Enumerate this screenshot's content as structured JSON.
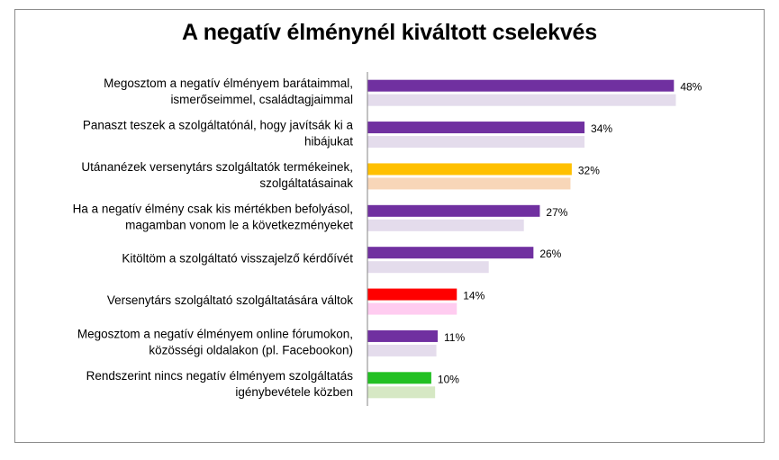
{
  "chart_data": {
    "type": "bar",
    "orientation": "horizontal",
    "title": "A negatív élménynél kiváltott cselekvés",
    "xlabel": "",
    "ylabel": "",
    "xlim": [
      0,
      50
    ],
    "grid": false,
    "legend": "none",
    "categories": [
      [
        "Megosztom a negatív élményem barátaimmal,",
        "ismerőseimmel, családtagjaimmal"
      ],
      [
        "Panaszt teszek a szolgáltatónál, hogy javítsák ki a",
        "hibájukat"
      ],
      [
        "Utánanézek versenytárs szolgáltatók termékeinek,",
        "szolgáltatásainak"
      ],
      [
        "Ha a negatív élmény csak kis mértékben befolyásol,",
        "magamban vonom le a következményeket"
      ],
      [
        "Kitöltöm a szolgáltató visszajelző kérdőívét"
      ],
      [
        "Versenytárs szolgáltató szolgáltatására váltok"
      ],
      [
        "Megosztom a negatív élményem online fórumokon,",
        "közösségi oldalakon (pl. Facebookon)"
      ],
      [
        "Rendszerint nincs negatív élményem szolgáltatás",
        "igénybevétele közben"
      ]
    ],
    "series": [
      {
        "values": [
          48,
          34,
          32,
          27,
          26,
          14,
          11,
          10
        ],
        "labels": [
          "48%",
          "34%",
          "32%",
          "27%",
          "26%",
          "14%",
          "11%",
          "10%"
        ],
        "colors": [
          "#7030a0",
          "#7030a0",
          "#ffc000",
          "#7030a0",
          "#7030a0",
          "#ff0000",
          "#7030a0",
          "#22c022"
        ]
      },
      {
        "values": [
          48.3,
          34,
          31.8,
          24.5,
          19,
          14,
          10.8,
          10.6
        ],
        "colors": [
          "#e4dcec",
          "#e4dcec",
          "#f8d6b8",
          "#e4dcec",
          "#e4dcec",
          "#ffccf0",
          "#e4dcec",
          "#d6e8c4"
        ]
      }
    ]
  }
}
